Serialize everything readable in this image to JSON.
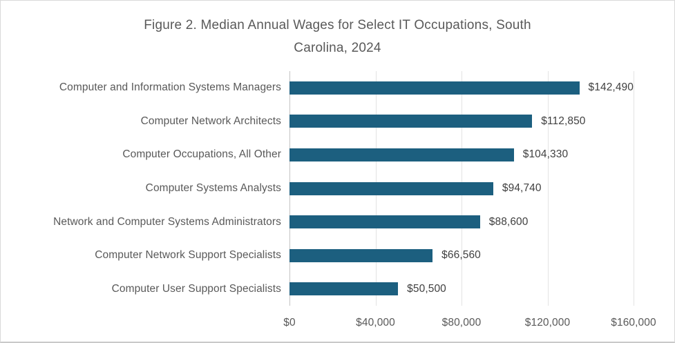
{
  "header": {
    "title_line1": "Figure 2. Median Annual Wages for Select IT Occupations, South",
    "title_line2": "Carolina, 2024"
  },
  "colors": {
    "bar": "#1C5F7F",
    "title_text": "#595959",
    "category_text": "#595959",
    "value_text": "#404040",
    "gridline": "#E3E3E3",
    "axis_line": "#C3C3C3",
    "frame_border": "#D9D9D9",
    "background": "#FFFFFF"
  },
  "chart_data": {
    "type": "bar",
    "orientation": "horizontal",
    "title": "Figure 2. Median Annual Wages for Select IT Occupations, South Carolina, 2024",
    "categories": [
      "Computer and Information Systems Managers",
      "Computer Network Architects",
      "Computer Occupations, All Other",
      "Computer Systems Analysts",
      "Network and Computer Systems Administrators",
      "Computer Network Support Specialists",
      "Computer User Support Specialists"
    ],
    "values": [
      142490,
      112850,
      104330,
      94740,
      88600,
      66560,
      50500
    ],
    "data_labels": [
      "$142,490",
      "$112,850",
      "$104,330",
      "$94,740",
      "$88,600",
      "$66,560",
      "$50,500"
    ],
    "xlabel": "",
    "ylabel": "",
    "x_axis": {
      "min": 0,
      "max": 160000,
      "tick_interval": 40000,
      "tick_labels": [
        "$0",
        "$40,000",
        "$80,000",
        "$120,000",
        "$160,000"
      ]
    },
    "grid": "vertical-gridlines",
    "legend": "none",
    "data_label_position": "outside-end"
  }
}
